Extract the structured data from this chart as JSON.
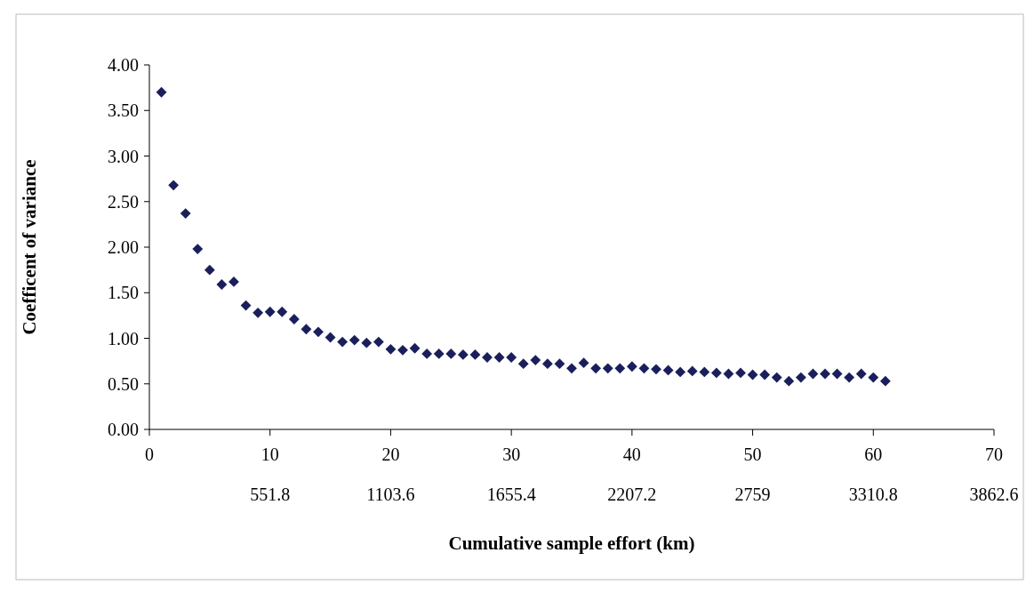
{
  "chart_data": {
    "type": "scatter",
    "xlabel": "Cumulative sample effort (km)",
    "ylabel": "Coefficent of variance",
    "x": [
      1,
      2,
      3,
      4,
      5,
      6,
      7,
      8,
      9,
      10,
      11,
      12,
      13,
      14,
      15,
      16,
      17,
      18,
      19,
      20,
      21,
      22,
      23,
      24,
      25,
      26,
      27,
      28,
      29,
      30,
      31,
      32,
      33,
      34,
      35,
      36,
      37,
      38,
      39,
      40,
      41,
      42,
      43,
      44,
      45,
      46,
      47,
      48,
      49,
      50,
      51,
      52,
      53,
      54,
      55,
      56,
      57,
      58,
      59,
      60,
      61
    ],
    "series": [
      {
        "color": "#1a1f5c",
        "values": [
          3.7,
          2.68,
          2.37,
          1.98,
          1.75,
          1.59,
          1.62,
          1.36,
          1.28,
          1.29,
          1.29,
          1.21,
          1.1,
          1.07,
          1.01,
          0.96,
          0.98,
          0.95,
          0.96,
          0.88,
          0.87,
          0.89,
          0.83,
          0.83,
          0.83,
          0.82,
          0.82,
          0.79,
          0.79,
          0.79,
          0.72,
          0.76,
          0.72,
          0.72,
          0.67,
          0.73,
          0.67,
          0.67,
          0.67,
          0.69,
          0.67,
          0.66,
          0.65,
          0.63,
          0.64,
          0.63,
          0.62,
          0.61,
          0.62,
          0.6,
          0.6,
          0.57,
          0.53,
          0.57,
          0.61,
          0.61,
          0.61,
          0.57,
          0.61,
          0.57,
          0.53
        ]
      }
    ],
    "xlim": [
      0,
      70
    ],
    "xticks": [
      0,
      10,
      20,
      30,
      40,
      50,
      60,
      70
    ],
    "x2lim": [
      0,
      3862.6
    ],
    "x2ticks": [
      551.8,
      1103.6,
      1655.4,
      2207.2,
      2759,
      3310.8,
      3862.6
    ],
    "ylim": [
      0,
      4
    ],
    "yticks": [
      {
        "value": 0,
        "label": "0.00"
      },
      {
        "value": 0.5,
        "label": "0.50"
      },
      {
        "value": 1,
        "label": "1.00"
      },
      {
        "value": 1.5,
        "label": "1.50"
      },
      {
        "value": 2,
        "label": "2.00"
      },
      {
        "value": 2.5,
        "label": "2.50"
      },
      {
        "value": 3,
        "label": "3.00"
      },
      {
        "value": 3.5,
        "label": "3.50"
      },
      {
        "value": 4,
        "label": "4.00"
      }
    ],
    "marker": "diamond",
    "grid": false
  }
}
